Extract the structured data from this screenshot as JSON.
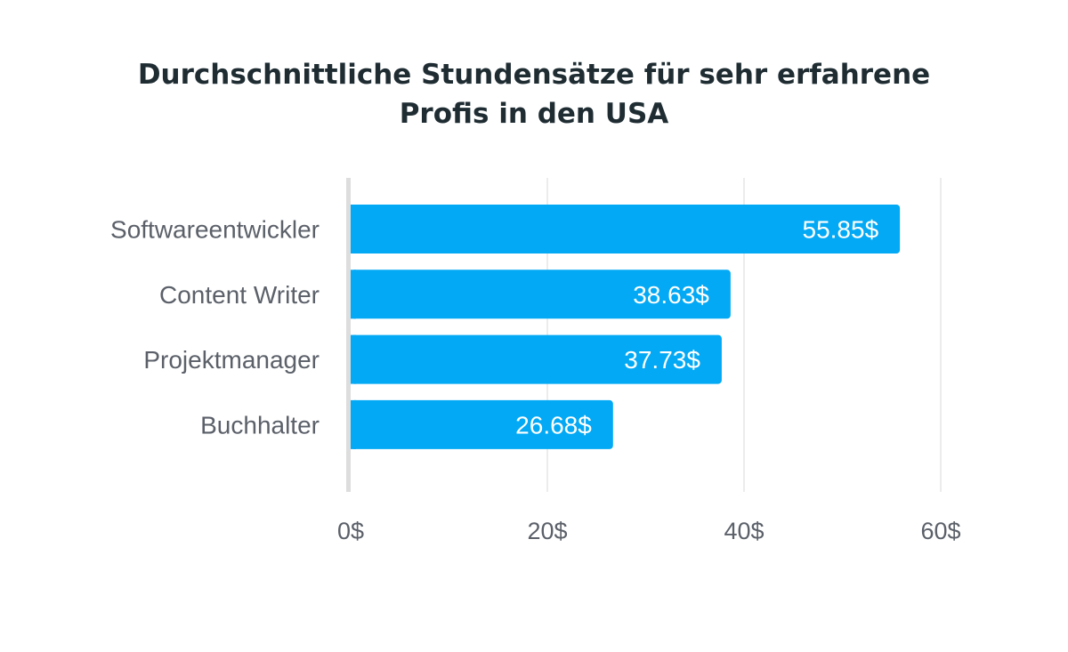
{
  "chart_data": {
    "type": "bar",
    "orientation": "horizontal",
    "title_lines": [
      "Durchschnittliche Stundensätze für sehr erfahrene",
      "Profis in den USA"
    ],
    "categories": [
      "Softwareentwickler",
      "Content Writer",
      "Projektmanager",
      "Buchhalter"
    ],
    "values": [
      55.85,
      38.63,
      37.73,
      26.68
    ],
    "value_labels": [
      "55.85$",
      "38.63$",
      "37.73$",
      "26.68$"
    ],
    "xlim": [
      0,
      60
    ],
    "xticks": [
      0,
      20,
      40,
      60
    ],
    "xtick_labels": [
      "0$",
      "20$",
      "40$",
      "60$"
    ],
    "grid": true,
    "legend": "none",
    "colors": {
      "bar": "#03a9f4",
      "bar_label": "#ffffff",
      "category_label": "#5b6069",
      "tick_label": "#5b6069",
      "grid": "#e6e6e6",
      "axis": "#dddddd",
      "title": "#1f2d33"
    }
  }
}
